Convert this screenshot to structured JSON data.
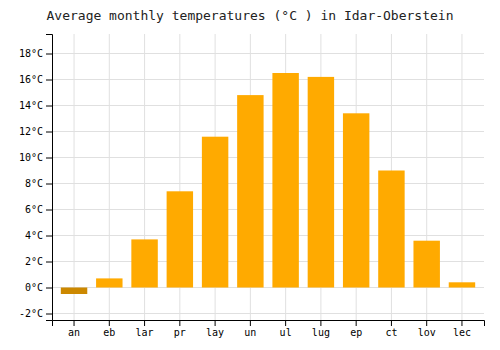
{
  "chart_data": {
    "type": "bar",
    "title": "Average monthly temperatures (°C ) in Idar-Oberstein",
    "categories": [
      "an",
      "eb",
      "lar",
      "pr",
      "lay",
      "un",
      "ul",
      "lug",
      "ep",
      "ct",
      "lov",
      "lec"
    ],
    "values": [
      -0.5,
      0.7,
      3.7,
      7.4,
      11.6,
      14.8,
      16.5,
      16.2,
      13.4,
      9.0,
      3.6,
      0.4
    ],
    "colors": [
      "#CC8800",
      "#FFAA00",
      "#FFAA00",
      "#FFAA00",
      "#FFAA00",
      "#FFAA00",
      "#FFAA00",
      "#FFAA00",
      "#FFAA00",
      "#FFAA00",
      "#FFAA00",
      "#FFAA00"
    ],
    "ylim": [
      -2.5,
      19.5
    ],
    "yticks": [
      {
        "value": -2,
        "label": "-2°C"
      },
      {
        "value": 0,
        "label": "0°C"
      },
      {
        "value": 2,
        "label": "2°C"
      },
      {
        "value": 4,
        "label": "4°C"
      },
      {
        "value": 6,
        "label": "6°C"
      },
      {
        "value": 8,
        "label": "8°C"
      },
      {
        "value": 10,
        "label": "10°C"
      },
      {
        "value": 12,
        "label": "12°C"
      },
      {
        "value": 14,
        "label": "14°C"
      },
      {
        "value": 16,
        "label": "16°C"
      },
      {
        "value": 18,
        "label": "18°C"
      }
    ],
    "grid": true
  }
}
